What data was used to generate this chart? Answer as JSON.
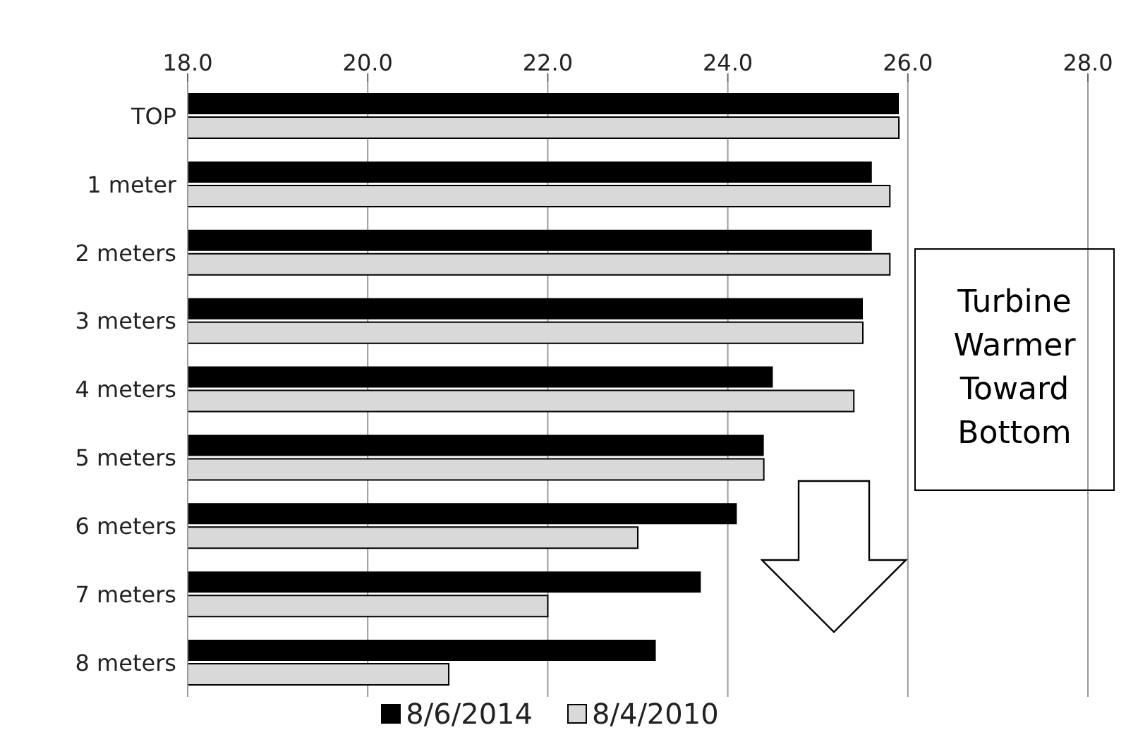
{
  "chart_data": {
    "type": "bar",
    "orientation": "horizontal",
    "categories": [
      "TOP",
      "1 meter",
      "2 meters",
      "3 meters",
      "4 meters",
      "5 meters",
      "6 meters",
      "7 meters",
      "8 meters"
    ],
    "series": [
      {
        "name": "8/6/2014",
        "color": "#000000",
        "values": [
          25.9,
          25.6,
          25.6,
          25.5,
          24.5,
          24.4,
          24.1,
          23.7,
          23.2
        ]
      },
      {
        "name": "8/4/2010",
        "color": "#d9d9d9",
        "values": [
          25.9,
          25.8,
          25.8,
          25.5,
          25.4,
          24.4,
          23.0,
          22.0,
          20.9
        ]
      }
    ],
    "xlim": [
      18,
      28
    ],
    "xticks": [
      {
        "value": 18,
        "label": "18.0"
      },
      {
        "value": 20,
        "label": "20.0"
      },
      {
        "value": 22,
        "label": "22.0"
      },
      {
        "value": 24,
        "label": "24.0"
      },
      {
        "value": 26,
        "label": "26.0"
      },
      {
        "value": 28,
        "label": "28.0"
      }
    ],
    "grid": "x",
    "legend": "bottom",
    "annotations": [
      "Turbine Warmer Toward Bottom"
    ]
  }
}
